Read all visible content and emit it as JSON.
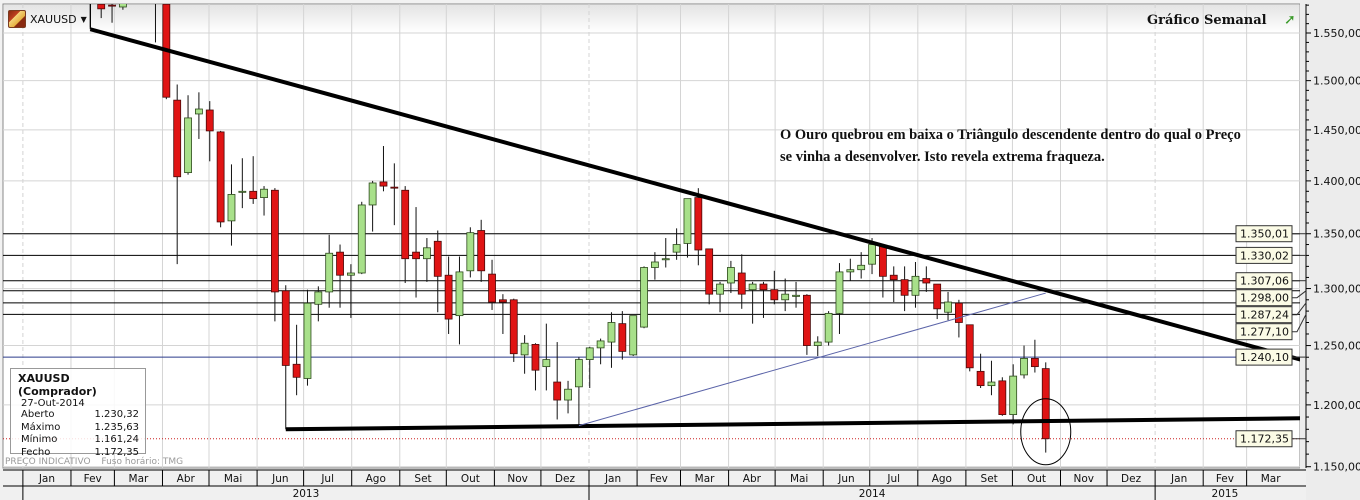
{
  "header": {
    "symbol": "XAUUSD",
    "title": "Gráfico Semanal",
    "trend_icon": "trend-up-arrow-icon"
  },
  "annotation": {
    "text": "O Ouro quebrou em baixa o Triângulo descendente dentro do qual o Preço se vinha a desenvolver. Isto revela extrema fraqueza."
  },
  "info_box": {
    "title": "XAUUSD (Comprador)",
    "date": "27-Out-2014",
    "rows": [
      {
        "label": "Aberto",
        "value": "1.230,32"
      },
      {
        "label": "Máximo",
        "value": "1.235,63"
      },
      {
        "label": "Mínimo",
        "value": "1.161,24"
      },
      {
        "label": "Fecho",
        "value": "1.172,35"
      }
    ]
  },
  "footer": {
    "price_note": "PREÇO INDICATIVO",
    "timezone": "Fuso horário: TMG"
  },
  "colors": {
    "up": "#a8e08a",
    "down": "#e01414",
    "support_resistance": "#000000",
    "current_line": "#2a3a8a",
    "last_price": "#cc2020"
  },
  "chart_data": {
    "type": "candlestick",
    "y_scale": "log",
    "ylim": [
      1150,
      1586
    ],
    "y_ticks": [
      1150,
      1200,
      1250,
      1300,
      1350,
      1400,
      1450,
      1500,
      1550
    ],
    "y_tick_labels": [
      "1.150,00",
      "1.200,00",
      "1.250,00",
      "1.300,00",
      "1.350,00",
      "1.400,00",
      "1.450,00",
      "1.500,00",
      "1.550,00"
    ],
    "x_months": [
      {
        "label": "Jan",
        "start": "2013-01-01"
      },
      {
        "label": "Fev",
        "start": "2013-02-01"
      },
      {
        "label": "Mar",
        "start": "2013-03-01"
      },
      {
        "label": "Abr",
        "start": "2013-04-01"
      },
      {
        "label": "Mai",
        "start": "2013-05-01"
      },
      {
        "label": "Jun",
        "start": "2013-06-01"
      },
      {
        "label": "Jul",
        "start": "2013-07-01"
      },
      {
        "label": "Ago",
        "start": "2013-08-01"
      },
      {
        "label": "Set",
        "start": "2013-09-01"
      },
      {
        "label": "Out",
        "start": "2013-10-01"
      },
      {
        "label": "Nov",
        "start": "2013-11-01"
      },
      {
        "label": "Dez",
        "start": "2013-12-01"
      },
      {
        "label": "Jan",
        "start": "2014-01-01"
      },
      {
        "label": "Fev",
        "start": "2014-02-01"
      },
      {
        "label": "Mar",
        "start": "2014-03-01"
      },
      {
        "label": "Abr",
        "start": "2014-04-01"
      },
      {
        "label": "Mai",
        "start": "2014-05-01"
      },
      {
        "label": "Jun",
        "start": "2014-06-01"
      },
      {
        "label": "Jul",
        "start": "2014-07-01"
      },
      {
        "label": "Ago",
        "start": "2014-08-01"
      },
      {
        "label": "Set",
        "start": "2014-09-01"
      },
      {
        "label": "Out",
        "start": "2014-10-01"
      },
      {
        "label": "Nov",
        "start": "2014-11-01"
      },
      {
        "label": "Dez",
        "start": "2014-12-01"
      },
      {
        "label": "Jan",
        "start": "2015-01-01"
      },
      {
        "label": "Fev",
        "start": "2015-02-01"
      },
      {
        "label": "Mar",
        "start": "2015-03-01"
      }
    ],
    "x_end": "2015-04-01",
    "x_years": [
      {
        "label": "2013",
        "start": "2013-01-01",
        "end": "2014-01-01"
      },
      {
        "label": "2014",
        "start": "2014-01-01",
        "end": "2015-01-01"
      },
      {
        "label": "2015",
        "start": "2015-01-01",
        "end": "2015-04-01"
      }
    ],
    "candles": [
      [
        "2013-02-18",
        1598,
        1620,
        1556,
        1592
      ],
      [
        "2013-02-25",
        1581,
        1590,
        1566,
        1576
      ],
      [
        "2013-03-04",
        1580,
        1595,
        1561,
        1579
      ],
      [
        "2013-03-11",
        1578,
        1595,
        1575,
        1583
      ],
      [
        "2013-03-18",
        1585,
        1616,
        1583,
        1600
      ],
      [
        "2013-03-25",
        1600,
        1615,
        1588,
        1598
      ],
      [
        "2013-04-01",
        1600,
        1610,
        1540,
        1588
      ],
      [
        "2013-04-08",
        1581,
        1590,
        1481,
        1483
      ],
      [
        "2013-04-15",
        1480,
        1496,
        1322,
        1404
      ],
      [
        "2013-04-22",
        1408,
        1485,
        1406,
        1462
      ],
      [
        "2013-04-29",
        1466,
        1488,
        1441,
        1471
      ],
      [
        "2013-05-06",
        1470,
        1479,
        1419,
        1449
      ],
      [
        "2013-05-13",
        1448,
        1449,
        1356,
        1361
      ],
      [
        "2013-05-20",
        1362,
        1416,
        1339,
        1387
      ],
      [
        "2013-05-27",
        1389,
        1422,
        1374,
        1390
      ],
      [
        "2013-06-03",
        1390,
        1424,
        1378,
        1383
      ],
      [
        "2013-06-10",
        1384,
        1395,
        1367,
        1392
      ],
      [
        "2013-06-17",
        1391,
        1393,
        1271,
        1297
      ],
      [
        "2013-06-24",
        1298,
        1303,
        1180,
        1233
      ],
      [
        "2013-07-01",
        1234,
        1268,
        1208,
        1223
      ],
      [
        "2013-07-08",
        1222,
        1299,
        1216,
        1287
      ],
      [
        "2013-07-15",
        1286,
        1302,
        1271,
        1297
      ],
      [
        "2013-07-22",
        1297,
        1349,
        1283,
        1332
      ],
      [
        "2013-07-29",
        1333,
        1340,
        1283,
        1312
      ],
      [
        "2013-08-05",
        1312,
        1322,
        1274,
        1314
      ],
      [
        "2013-08-12",
        1314,
        1380,
        1313,
        1377
      ],
      [
        "2013-08-19",
        1377,
        1400,
        1352,
        1398
      ],
      [
        "2013-08-26",
        1399,
        1434,
        1390,
        1395
      ],
      [
        "2013-09-02",
        1394,
        1417,
        1358,
        1393
      ],
      [
        "2013-09-09",
        1391,
        1395,
        1305,
        1327
      ],
      [
        "2013-09-16",
        1333,
        1375,
        1292,
        1327
      ],
      [
        "2013-09-23",
        1327,
        1346,
        1306,
        1337
      ],
      [
        "2013-09-30",
        1343,
        1353,
        1279,
        1311
      ],
      [
        "2013-10-07",
        1312,
        1329,
        1260,
        1273
      ],
      [
        "2013-10-14",
        1276,
        1329,
        1251,
        1315
      ],
      [
        "2013-10-21",
        1316,
        1356,
        1310,
        1351
      ],
      [
        "2013-10-28",
        1353,
        1363,
        1306,
        1316
      ],
      [
        "2013-11-04",
        1313,
        1326,
        1281,
        1288
      ],
      [
        "2013-11-11",
        1290,
        1295,
        1260,
        1288
      ],
      [
        "2013-11-18",
        1290,
        1291,
        1236,
        1243
      ],
      [
        "2013-11-25",
        1242,
        1259,
        1226,
        1252
      ],
      [
        "2013-12-02",
        1251,
        1252,
        1212,
        1229
      ],
      [
        "2013-12-09",
        1232,
        1269,
        1212,
        1238
      ],
      [
        "2013-12-16",
        1219,
        1253,
        1188,
        1204
      ],
      [
        "2013-12-23",
        1204,
        1220,
        1193,
        1213
      ],
      [
        "2013-12-30",
        1215,
        1240,
        1183,
        1238
      ],
      [
        "2014-01-06",
        1238,
        1249,
        1214,
        1248
      ],
      [
        "2014-01-13",
        1248,
        1256,
        1234,
        1254
      ],
      [
        "2014-01-20",
        1253,
        1279,
        1231,
        1270
      ],
      [
        "2014-01-27",
        1269,
        1280,
        1238,
        1245
      ],
      [
        "2014-02-03",
        1242,
        1276,
        1241,
        1276
      ],
      [
        "2014-02-10",
        1266,
        1320,
        1265,
        1319
      ],
      [
        "2014-02-17",
        1319,
        1333,
        1308,
        1324
      ],
      [
        "2014-02-24",
        1326,
        1346,
        1319,
        1327
      ],
      [
        "2014-03-03",
        1333,
        1355,
        1326,
        1340
      ],
      [
        "2014-03-10",
        1341,
        1383,
        1328,
        1383
      ],
      [
        "2014-03-17",
        1384,
        1393,
        1321,
        1335
      ],
      [
        "2014-03-24",
        1336,
        1336,
        1286,
        1295
      ],
      [
        "2014-03-31",
        1295,
        1306,
        1279,
        1304
      ],
      [
        "2014-04-07",
        1305,
        1325,
        1296,
        1319
      ],
      [
        "2014-04-14",
        1314,
        1331,
        1282,
        1295
      ],
      [
        "2014-04-21",
        1299,
        1306,
        1269,
        1304
      ],
      [
        "2014-04-28",
        1304,
        1306,
        1274,
        1299
      ],
      [
        "2014-05-05",
        1299,
        1316,
        1286,
        1290
      ],
      [
        "2014-05-12",
        1290,
        1309,
        1280,
        1295
      ],
      [
        "2014-05-19",
        1293,
        1306,
        1283,
        1294
      ],
      [
        "2014-05-26",
        1294,
        1295,
        1242,
        1250
      ],
      [
        "2014-06-02",
        1250,
        1258,
        1241,
        1253
      ],
      [
        "2014-06-09",
        1253,
        1280,
        1250,
        1278
      ],
      [
        "2014-06-16",
        1278,
        1323,
        1260,
        1315
      ],
      [
        "2014-06-23",
        1315,
        1327,
        1307,
        1317
      ],
      [
        "2014-06-30",
        1317,
        1333,
        1309,
        1321
      ],
      [
        "2014-07-07",
        1322,
        1346,
        1313,
        1340
      ],
      [
        "2014-07-14",
        1339,
        1339,
        1292,
        1311
      ],
      [
        "2014-07-21",
        1312,
        1320,
        1288,
        1308
      ],
      [
        "2014-07-28",
        1308,
        1320,
        1280,
        1294
      ],
      [
        "2014-08-04",
        1294,
        1324,
        1283,
        1311
      ],
      [
        "2014-08-11",
        1309,
        1320,
        1297,
        1305
      ],
      [
        "2014-08-18",
        1304,
        1304,
        1273,
        1282
      ],
      [
        "2014-08-25",
        1279,
        1297,
        1272,
        1288
      ],
      [
        "2014-09-01",
        1287,
        1290,
        1257,
        1270
      ],
      [
        "2014-09-08",
        1268,
        1268,
        1228,
        1231
      ],
      [
        "2014-09-15",
        1228,
        1243,
        1214,
        1216
      ],
      [
        "2014-09-22",
        1216,
        1237,
        1208,
        1219
      ],
      [
        "2014-09-29",
        1220,
        1223,
        1191,
        1192
      ],
      [
        "2014-10-06",
        1192,
        1234,
        1184,
        1224
      ],
      [
        "2014-10-13",
        1225,
        1250,
        1222,
        1239
      ],
      [
        "2014-10-20",
        1239,
        1255,
        1227,
        1232
      ],
      [
        "2014-10-27",
        1230.32,
        1235.63,
        1161.24,
        1172.35
      ]
    ],
    "horizontal_levels": [
      {
        "value": 1350.01,
        "label": "1.350,01",
        "style": "solid"
      },
      {
        "value": 1330.02,
        "label": "1.330,02",
        "style": "solid"
      },
      {
        "value": 1307.06,
        "label": "1.307,06",
        "style": "solid"
      },
      {
        "value": 1287.24,
        "label": "1.287,24",
        "style": "solid"
      },
      {
        "value": 1298.0,
        "label": "1.298,00",
        "style": "solid"
      },
      {
        "value": 1277.1,
        "label": "1.277,10",
        "style": "solid"
      },
      {
        "value": 1240.1,
        "label": "1.240,10",
        "style": "current"
      },
      {
        "value": 1172.35,
        "label": "1.172,35",
        "style": "last"
      }
    ],
    "trendlines": [
      {
        "name": "descending-resistance",
        "from": [
          "2013-02-18",
          1554
        ],
        "to": [
          "2015-04-12",
          1237
        ],
        "weight": "thick"
      },
      {
        "name": "horizontal-support",
        "from": [
          "2013-06-24",
          1180
        ],
        "to": [
          "2015-04-12",
          1189
        ],
        "weight": "thick"
      },
      {
        "name": "rising-line",
        "from": [
          "2013-12-30",
          1183
        ],
        "to": [
          "2014-10-27",
          1296
        ],
        "weight": "thin"
      }
    ],
    "highlight": {
      "date": "2014-10-27",
      "price": 1178
    }
  }
}
